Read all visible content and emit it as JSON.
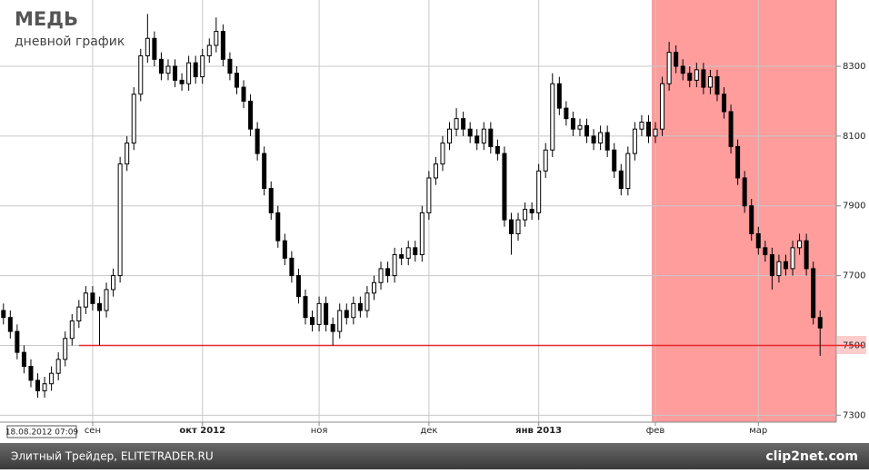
{
  "chart_data": {
    "type": "candlestick",
    "title": "МЕДЬ",
    "subtitle": "дневной график",
    "timestamp": "18.08.2012 07:09",
    "categories": [
      null,
      null,
      null,
      null,
      null,
      null,
      null,
      null,
      null,
      null,
      null,
      null,
      null,
      "сен",
      null,
      null,
      null,
      null,
      null,
      null,
      null,
      null,
      null,
      null,
      null,
      null,
      null,
      null,
      null,
      "окт 2012",
      null,
      null,
      null,
      null,
      null,
      null,
      null,
      null,
      null,
      null,
      null,
      null,
      null,
      null,
      null,
      null,
      "ноя",
      null,
      null,
      null,
      null,
      null,
      null,
      null,
      null,
      null,
      null,
      null,
      null,
      null,
      null,
      null,
      "дек",
      null,
      null,
      null,
      null,
      null,
      null,
      null,
      null,
      null,
      null,
      null,
      null,
      null,
      null,
      null,
      "янв 2013",
      null,
      null,
      null,
      null,
      null,
      null,
      null,
      null,
      null,
      null,
      null,
      null,
      null,
      null,
      null,
      null,
      "фев",
      null,
      null,
      null,
      null,
      null,
      null,
      null,
      null,
      null,
      null,
      null,
      null,
      null,
      null,
      "мар",
      null,
      null,
      null,
      null,
      null,
      null,
      null,
      null,
      null
    ],
    "bold_categories": [
      "окт 2012",
      "янв 2013"
    ],
    "open": [
      7600,
      7580,
      7540,
      7480,
      7440,
      7400,
      7370,
      7390,
      7420,
      7460,
      7520,
      7570,
      7610,
      7650,
      7620,
      7600,
      7660,
      7700,
      8020,
      8080,
      8220,
      8330,
      8380,
      8320,
      8280,
      8300,
      8260,
      8250,
      8310,
      8270,
      8330,
      8360,
      8400,
      8320,
      8280,
      8240,
      8200,
      8120,
      8050,
      7950,
      7880,
      7800,
      7750,
      7700,
      7640,
      7580,
      7560,
      7620,
      7560,
      7540,
      7600,
      7580,
      7620,
      7600,
      7650,
      7680,
      7720,
      7700,
      7760,
      7750,
      7780,
      7760,
      7880,
      7980,
      8020,
      8080,
      8120,
      8150,
      8120,
      8100,
      8080,
      8120,
      8070,
      8050,
      7860,
      7820,
      7860,
      7890,
      7880,
      8000,
      8060,
      8250,
      8180,
      8150,
      8120,
      8130,
      8100,
      8080,
      8110,
      8060,
      8000,
      7950,
      8050,
      8120,
      8140,
      8100,
      8120,
      8250,
      8340,
      8300,
      8280,
      8260,
      8290,
      8240,
      8270,
      8220,
      8170,
      8070,
      7980,
      7900,
      7820,
      7780,
      7760,
      7700,
      7740,
      7720,
      7780,
      7800,
      7720,
      7580
    ],
    "high": [
      7620,
      7600,
      7560,
      7500,
      7460,
      7420,
      7410,
      7440,
      7480,
      7540,
      7590,
      7630,
      7670,
      7670,
      7640,
      7680,
      7720,
      8040,
      8100,
      8240,
      8350,
      8450,
      8400,
      8340,
      8320,
      8320,
      8280,
      8330,
      8330,
      8350,
      8380,
      8440,
      8420,
      8340,
      8300,
      8260,
      8220,
      8140,
      8070,
      7970,
      7900,
      7820,
      7770,
      7720,
      7660,
      7600,
      7640,
      7640,
      7580,
      7620,
      7620,
      7640,
      7640,
      7670,
      7700,
      7740,
      7740,
      7780,
      7780,
      7800,
      7800,
      7900,
      8000,
      8040,
      8100,
      8140,
      8180,
      8170,
      8140,
      8120,
      8140,
      8140,
      8090,
      8070,
      7880,
      7880,
      7910,
      7910,
      8020,
      8080,
      8280,
      8270,
      8200,
      8170,
      8150,
      8150,
      8120,
      8130,
      8130,
      8080,
      8020,
      8070,
      8140,
      8160,
      8160,
      8140,
      8270,
      8370,
      8360,
      8320,
      8300,
      8310,
      8310,
      8290,
      8290,
      8240,
      8190,
      8090,
      8000,
      7920,
      7840,
      7800,
      7780,
      7760,
      7760,
      7800,
      7820,
      7820,
      7740,
      7600
    ],
    "low": [
      7560,
      7520,
      7460,
      7420,
      7380,
      7350,
      7350,
      7370,
      7400,
      7440,
      7500,
      7550,
      7590,
      7600,
      7500,
      7580,
      7640,
      7680,
      8000,
      8060,
      8200,
      8310,
      8300,
      8260,
      8260,
      8240,
      8230,
      8230,
      8250,
      8250,
      8310,
      8340,
      8300,
      8260,
      8220,
      8180,
      8100,
      8030,
      7930,
      7860,
      7780,
      7730,
      7680,
      7620,
      7560,
      7540,
      7540,
      7540,
      7500,
      7520,
      7560,
      7560,
      7580,
      7580,
      7630,
      7660,
      7680,
      7680,
      7730,
      7730,
      7740,
      7740,
      7860,
      7960,
      8000,
      8060,
      8100,
      8100,
      8080,
      8060,
      8060,
      8050,
      8030,
      7840,
      7760,
      7800,
      7840,
      7860,
      7860,
      7980,
      8040,
      8160,
      8130,
      8100,
      8100,
      8080,
      8060,
      8060,
      8040,
      7980,
      7930,
      7930,
      8030,
      8100,
      8080,
      8080,
      8100,
      8230,
      8280,
      8260,
      8240,
      8240,
      8220,
      8220,
      8200,
      8150,
      8050,
      7960,
      7880,
      7800,
      7760,
      7740,
      7660,
      7680,
      7700,
      7700,
      7760,
      7700,
      7560,
      7470
    ],
    "close": [
      7580,
      7540,
      7480,
      7440,
      7400,
      7370,
      7390,
      7420,
      7460,
      7520,
      7570,
      7610,
      7650,
      7620,
      7600,
      7660,
      7700,
      8020,
      8080,
      8220,
      8330,
      8380,
      8320,
      8280,
      8300,
      8260,
      8250,
      8310,
      8270,
      8330,
      8360,
      8400,
      8320,
      8280,
      8240,
      8200,
      8120,
      8050,
      7950,
      7880,
      7800,
      7750,
      7700,
      7640,
      7580,
      7560,
      7620,
      7560,
      7540,
      7600,
      7580,
      7620,
      7600,
      7650,
      7680,
      7720,
      7700,
      7760,
      7750,
      7780,
      7760,
      7880,
      7980,
      8020,
      8080,
      8120,
      8150,
      8120,
      8100,
      8080,
      8120,
      8070,
      8050,
      7860,
      7820,
      7860,
      7890,
      7880,
      8000,
      8060,
      8250,
      8180,
      8150,
      8120,
      8130,
      8100,
      8080,
      8110,
      8060,
      8000,
      7950,
      8050,
      8120,
      8140,
      8100,
      8120,
      8250,
      8340,
      8300,
      8280,
      8260,
      8290,
      8240,
      8270,
      8220,
      8170,
      8070,
      7980,
      7900,
      7820,
      7780,
      7760,
      7700,
      7740,
      7720,
      7780,
      7800,
      7720,
      7580,
      7550
    ],
    "ylim": [
      7280,
      8490
    ],
    "yticks": [
      7300,
      7500,
      7700,
      7900,
      8100,
      8300
    ],
    "grid": true,
    "hline": 7500,
    "hline_color": "#e8282c",
    "footer": "Элитный Трейдер, ELITETRADER.RU",
    "watermark": "clip2net.com"
  }
}
